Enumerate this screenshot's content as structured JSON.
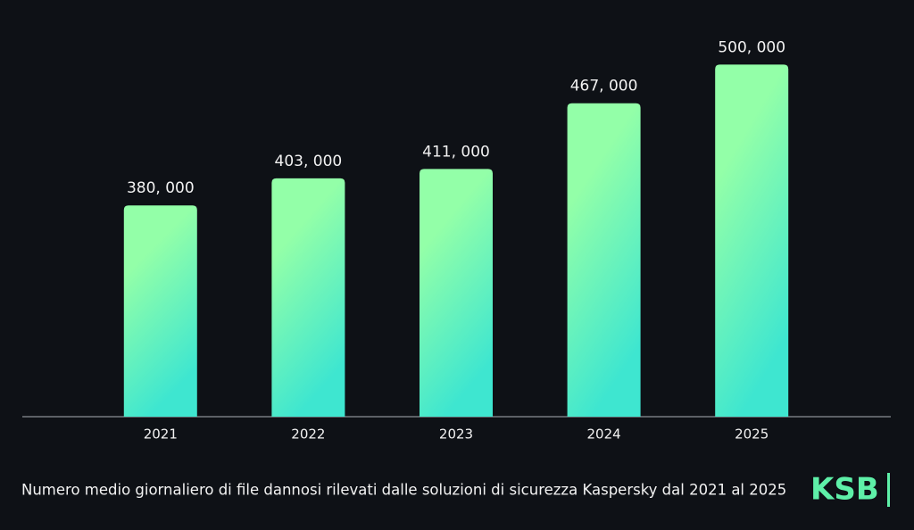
{
  "chart_data": {
    "type": "bar",
    "categories": [
      "2021",
      "2022",
      "2023",
      "2024",
      "2025"
    ],
    "values": [
      380000,
      403000,
      411000,
      467000,
      500000
    ],
    "value_labels": [
      "380, 000",
      "403, 000",
      "411, 000",
      "467, 000",
      "500, 000"
    ],
    "color": [
      "#93ffa8",
      "#3ee6d0"
    ],
    "ylim": [
      200000,
      520000
    ],
    "caption": "Numero medio giornaliero di file dannosi rilevati dalle soluzioni di sicurezza Kaspersky dal 2021 al 2025",
    "logo": "KSB"
  }
}
